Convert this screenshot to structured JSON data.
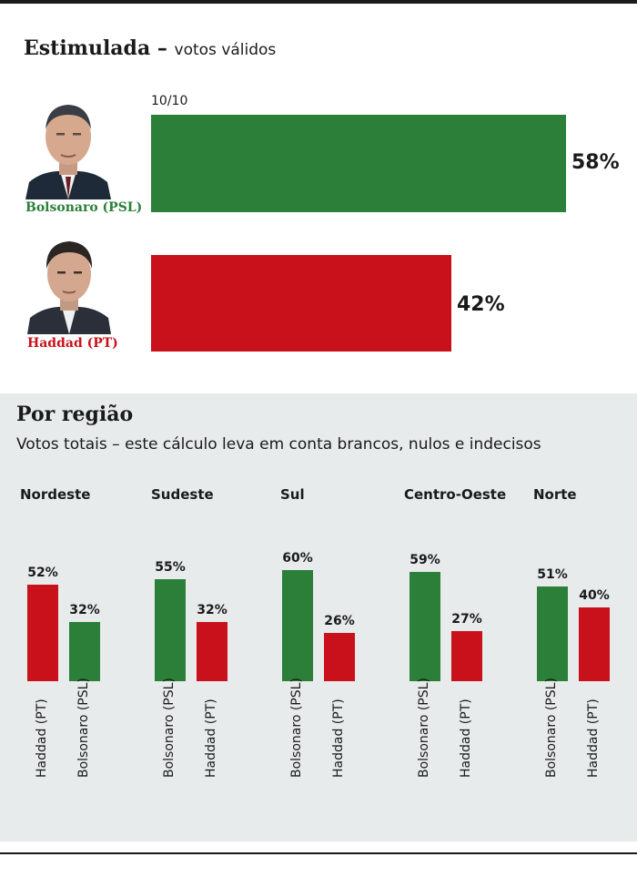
{
  "header": {
    "title_bold": "Estimulada",
    "title_dash": " – ",
    "title_rest": "votos válidos",
    "date": "10/10"
  },
  "colors": {
    "bolsonaro": "#2b7f38",
    "haddad": "#c9111b",
    "panel": "#e8ebec"
  },
  "candidates": [
    {
      "name": "Bolsonaro (PSL)",
      "value": 58,
      "label": "58%",
      "color": "#2b7f38",
      "portrait": "bolsonaro-portrait"
    },
    {
      "name": "Haddad (PT)",
      "value": 42,
      "label": "42%",
      "color": "#c9111b",
      "portrait": "haddad-portrait"
    }
  ],
  "region_section": {
    "title": "Por região",
    "subtitle": "Votos totais – este cálculo leva em conta brancos, nulos e indecisos"
  },
  "chart_data": [
    {
      "type": "bar",
      "orientation": "horizontal",
      "title": "Estimulada – votos válidos",
      "categories": [
        "Bolsonaro (PSL)",
        "Haddad (PT)"
      ],
      "values": [
        58,
        42
      ],
      "value_labels": [
        "58%",
        "42%"
      ],
      "unit": "%",
      "colors": [
        "#2b7f38",
        "#c9111b"
      ]
    },
    {
      "type": "bar",
      "orientation": "vertical",
      "title": "Por região",
      "regions": [
        {
          "name": "Nordeste",
          "bars": [
            {
              "label": "Haddad (PT)",
              "value": 52,
              "display": "52%",
              "color": "#c9111b"
            },
            {
              "label": "Bolsonaro (PSL)",
              "value": 32,
              "display": "32%",
              "color": "#2b7f38"
            }
          ]
        },
        {
          "name": "Sudeste",
          "bars": [
            {
              "label": "Bolsonaro (PSL)",
              "value": 55,
              "display": "55%",
              "color": "#2b7f38"
            },
            {
              "label": "Haddad (PT)",
              "value": 32,
              "display": "32%",
              "color": "#c9111b"
            }
          ]
        },
        {
          "name": "Sul",
          "bars": [
            {
              "label": "Bolsonaro (PSL)",
              "value": 60,
              "display": "60%",
              "color": "#2b7f38"
            },
            {
              "label": "Haddad (PT)",
              "value": 26,
              "display": "26%",
              "color": "#c9111b"
            }
          ]
        },
        {
          "name": "Centro-Oeste",
          "bars": [
            {
              "label": "Bolsonaro (PSL)",
              "value": 59,
              "display": "59%",
              "color": "#2b7f38"
            },
            {
              "label": "Haddad (PT)",
              "value": 27,
              "display": "27%",
              "color": "#c9111b"
            }
          ]
        },
        {
          "name": "Norte",
          "bars": [
            {
              "label": "Bolsonaro (PSL)",
              "value": 51,
              "display": "51%",
              "color": "#2b7f38"
            },
            {
              "label": "Haddad (PT)",
              "value": 40,
              "display": "40%",
              "color": "#c9111b"
            }
          ]
        }
      ]
    }
  ]
}
